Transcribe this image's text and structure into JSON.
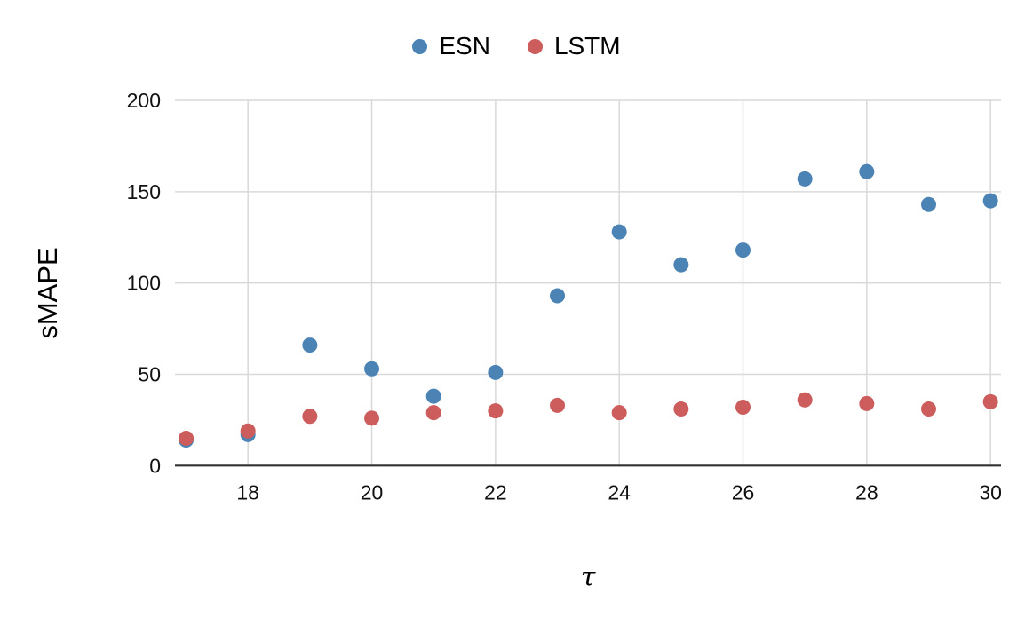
{
  "chart_data": {
    "type": "scatter",
    "x": [
      17,
      18,
      19,
      20,
      21,
      22,
      23,
      24,
      25,
      26,
      27,
      28,
      29,
      30
    ],
    "series": [
      {
        "name": "ESN",
        "color": "#4a83b4",
        "values": [
          14,
          17,
          66,
          53,
          38,
          51,
          93,
          128,
          110,
          118,
          157,
          161,
          143,
          145
        ]
      },
      {
        "name": "LSTM",
        "color": "#cd5c5c",
        "values": [
          15,
          19,
          27,
          26,
          29,
          30,
          33,
          29,
          31,
          32,
          36,
          34,
          31,
          35
        ]
      }
    ],
    "xlabel": "τ",
    "ylabel": "sMAPE",
    "xticks": [
      18,
      20,
      22,
      24,
      26,
      28,
      30
    ],
    "yticks": [
      0,
      50,
      100,
      150,
      200
    ],
    "xlim": [
      16.82,
      30.17
    ],
    "ylim": [
      0,
      200
    ],
    "grid": true,
    "legend_position": "top-center",
    "point_radius": 8.5,
    "colors": {
      "grid_line": "#d9d9d9",
      "axis_line": "#333333",
      "tick_text": "#111111",
      "background": "#ffffff"
    }
  }
}
